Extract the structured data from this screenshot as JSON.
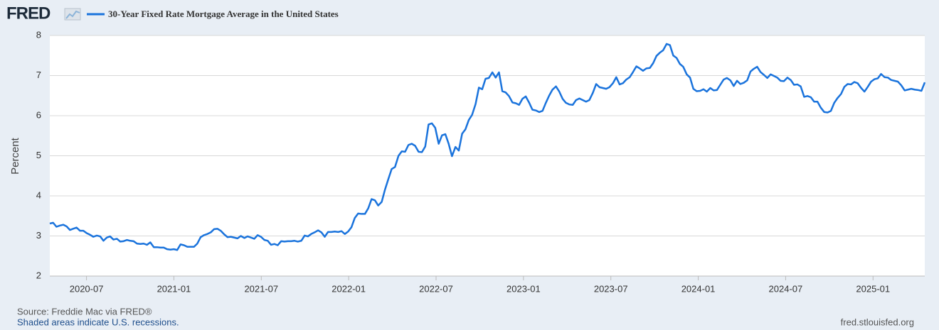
{
  "chart_data": {
    "type": "line",
    "logo": "FRED",
    "ylabel": "Percent",
    "source": "Source: Freddie Mac via FRED®",
    "note": "Shaded areas indicate U.S. recessions.",
    "url": "fred.stlouisfed.org",
    "grid": true,
    "xlim": [
      2020.29,
      2025.296
    ],
    "xticks": [
      {
        "value": 2020.5,
        "label": "2020-07"
      },
      {
        "value": 2021,
        "label": "2021-01"
      },
      {
        "value": 2021.5,
        "label": "2021-07"
      },
      {
        "value": 2022,
        "label": "2022-01"
      },
      {
        "value": 2022.5,
        "label": "2022-07"
      },
      {
        "value": 2023,
        "label": "2023-01"
      },
      {
        "value": 2023.5,
        "label": "2023-07"
      },
      {
        "value": 2024,
        "label": "2024-01"
      },
      {
        "value": 2024.5,
        "label": "2024-07"
      },
      {
        "value": 2025,
        "label": "2025-01"
      }
    ],
    "ylim": [
      2,
      8
    ],
    "yticks": [
      2,
      3,
      4,
      5,
      6,
      7,
      8
    ],
    "x": [
      2020.29,
      2020.309,
      2020.328,
      2020.348,
      2020.367,
      2020.386,
      2020.405,
      2020.424,
      2020.443,
      2020.463,
      2020.482,
      2020.501,
      2020.52,
      2020.539,
      2020.559,
      2020.578,
      2020.597,
      2020.616,
      2020.635,
      2020.654,
      2020.674,
      2020.693,
      2020.712,
      2020.731,
      2020.75,
      2020.769,
      2020.789,
      2020.808,
      2020.827,
      2020.846,
      2020.865,
      2020.885,
      2020.904,
      2020.923,
      2020.942,
      2020.961,
      2020.98,
      2021.0,
      2021.019,
      2021.038,
      2021.057,
      2021.077,
      2021.096,
      2021.115,
      2021.134,
      2021.153,
      2021.172,
      2021.192,
      2021.211,
      2021.23,
      2021.249,
      2021.268,
      2021.288,
      2021.307,
      2021.326,
      2021.345,
      2021.364,
      2021.383,
      2021.403,
      2021.422,
      2021.441,
      2021.46,
      2021.479,
      2021.498,
      2021.518,
      2021.537,
      2021.556,
      2021.575,
      2021.594,
      2021.614,
      2021.633,
      2021.652,
      2021.671,
      2021.69,
      2021.709,
      2021.729,
      2021.748,
      2021.767,
      2021.786,
      2021.805,
      2021.825,
      2021.844,
      2021.863,
      2021.882,
      2021.901,
      2021.92,
      2021.94,
      2021.959,
      2021.978,
      2021.997,
      2022.016,
      2022.035,
      2022.054,
      2022.074,
      2022.093,
      2022.112,
      2022.131,
      2022.15,
      2022.169,
      2022.189,
      2022.208,
      2022.227,
      2022.246,
      2022.265,
      2022.285,
      2022.304,
      2022.323,
      2022.342,
      2022.361,
      2022.38,
      2022.4,
      2022.419,
      2022.438,
      2022.457,
      2022.476,
      2022.495,
      2022.515,
      2022.534,
      2022.553,
      2022.572,
      2022.591,
      2022.611,
      2022.63,
      2022.649,
      2022.668,
      2022.687,
      2022.706,
      2022.726,
      2022.745,
      2022.764,
      2022.783,
      2022.802,
      2022.822,
      2022.841,
      2022.86,
      2022.879,
      2022.898,
      2022.917,
      2022.937,
      2022.956,
      2022.975,
      2022.994,
      2023.013,
      2023.032,
      2023.051,
      2023.071,
      2023.09,
      2023.109,
      2023.128,
      2023.147,
      2023.166,
      2023.186,
      2023.205,
      2023.224,
      2023.243,
      2023.262,
      2023.282,
      2023.301,
      2023.32,
      2023.339,
      2023.358,
      2023.377,
      2023.397,
      2023.416,
      2023.435,
      2023.454,
      2023.473,
      2023.492,
      2023.512,
      2023.531,
      2023.55,
      2023.569,
      2023.588,
      2023.608,
      2023.627,
      2023.646,
      2023.665,
      2023.684,
      2023.703,
      2023.723,
      2023.742,
      2023.761,
      2023.78,
      2023.799,
      2023.819,
      2023.838,
      2023.857,
      2023.876,
      2023.895,
      2023.914,
      2023.934,
      2023.953,
      2023.972,
      2023.991,
      2024.011,
      2024.03,
      2024.049,
      2024.069,
      2024.088,
      2024.107,
      2024.126,
      2024.145,
      2024.164,
      2024.184,
      2024.203,
      2024.222,
      2024.241,
      2024.26,
      2024.28,
      2024.299,
      2024.318,
      2024.337,
      2024.356,
      2024.375,
      2024.395,
      2024.414,
      2024.433,
      2024.452,
      2024.471,
      2024.49,
      2024.51,
      2024.529,
      2024.548,
      2024.567,
      2024.586,
      2024.606,
      2024.625,
      2024.644,
      2024.663,
      2024.682,
      2024.701,
      2024.721,
      2024.74,
      2024.759,
      2024.778,
      2024.797,
      2024.817,
      2024.836,
      2024.855,
      2024.874,
      2024.893,
      2024.912,
      2024.932,
      2024.951,
      2024.97,
      2024.989,
      2025.008,
      2025.027,
      2025.046,
      2025.066,
      2025.085,
      2025.104,
      2025.123,
      2025.142,
      2025.161,
      2025.181,
      2025.2,
      2025.219,
      2025.238,
      2025.257,
      2025.277,
      2025.296
    ],
    "series": [
      {
        "name": "30-Year Fixed Rate Mortgage Average in the United States",
        "color": "#1a73dc",
        "values": [
          3.31,
          3.33,
          3.23,
          3.26,
          3.28,
          3.24,
          3.15,
          3.18,
          3.21,
          3.13,
          3.13,
          3.07,
          3.03,
          2.98,
          3.01,
          2.99,
          2.88,
          2.96,
          2.99,
          2.91,
          2.93,
          2.86,
          2.87,
          2.9,
          2.88,
          2.87,
          2.81,
          2.8,
          2.81,
          2.78,
          2.84,
          2.72,
          2.72,
          2.71,
          2.71,
          2.67,
          2.66,
          2.67,
          2.65,
          2.79,
          2.77,
          2.73,
          2.73,
          2.73,
          2.81,
          2.97,
          3.02,
          3.05,
          3.09,
          3.17,
          3.18,
          3.13,
          3.04,
          2.97,
          2.98,
          2.96,
          2.94,
          3.0,
          2.95,
          2.99,
          2.96,
          2.93,
          3.02,
          2.98,
          2.9,
          2.88,
          2.78,
          2.8,
          2.77,
          2.87,
          2.86,
          2.87,
          2.87,
          2.88,
          2.86,
          2.88,
          3.01,
          2.99,
          3.05,
          3.09,
          3.14,
          3.09,
          2.98,
          3.1,
          3.1,
          3.11,
          3.1,
          3.12,
          3.05,
          3.11,
          3.22,
          3.45,
          3.56,
          3.55,
          3.55,
          3.69,
          3.92,
          3.89,
          3.76,
          3.85,
          4.16,
          4.42,
          4.67,
          4.72,
          5.0,
          5.11,
          5.1,
          5.27,
          5.3,
          5.25,
          5.1,
          5.09,
          5.23,
          5.78,
          5.81,
          5.7,
          5.3,
          5.51,
          5.54,
          5.3,
          4.99,
          5.22,
          5.13,
          5.55,
          5.66,
          5.89,
          6.02,
          6.29,
          6.7,
          6.66,
          6.92,
          6.94,
          7.08,
          6.95,
          7.08,
          6.61,
          6.58,
          6.49,
          6.33,
          6.31,
          6.27,
          6.42,
          6.48,
          6.33,
          6.15,
          6.13,
          6.09,
          6.12,
          6.32,
          6.5,
          6.65,
          6.73,
          6.6,
          6.42,
          6.32,
          6.28,
          6.27,
          6.39,
          6.43,
          6.39,
          6.35,
          6.39,
          6.57,
          6.79,
          6.71,
          6.69,
          6.67,
          6.71,
          6.81,
          6.96,
          6.78,
          6.81,
          6.9,
          6.96,
          7.09,
          7.23,
          7.18,
          7.12,
          7.18,
          7.19,
          7.31,
          7.49,
          7.57,
          7.63,
          7.79,
          7.76,
          7.5,
          7.44,
          7.29,
          7.22,
          7.03,
          6.95,
          6.67,
          6.61,
          6.62,
          6.66,
          6.6,
          6.69,
          6.63,
          6.64,
          6.77,
          6.9,
          6.94,
          6.88,
          6.74,
          6.87,
          6.79,
          6.82,
          6.88,
          7.1,
          7.17,
          7.22,
          7.09,
          7.02,
          6.94,
          7.03,
          6.99,
          6.95,
          6.87,
          6.86,
          6.95,
          6.89,
          6.77,
          6.78,
          6.73,
          6.47,
          6.49,
          6.46,
          6.35,
          6.35,
          6.2,
          6.09,
          6.08,
          6.12,
          6.32,
          6.44,
          6.54,
          6.72,
          6.79,
          6.78,
          6.84,
          6.81,
          6.69,
          6.6,
          6.72,
          6.85,
          6.91,
          6.93,
          7.04,
          6.96,
          6.95,
          6.89,
          6.87,
          6.85,
          6.76,
          6.63,
          6.65,
          6.67,
          6.65,
          6.64,
          6.62,
          6.83
        ]
      }
    ]
  }
}
